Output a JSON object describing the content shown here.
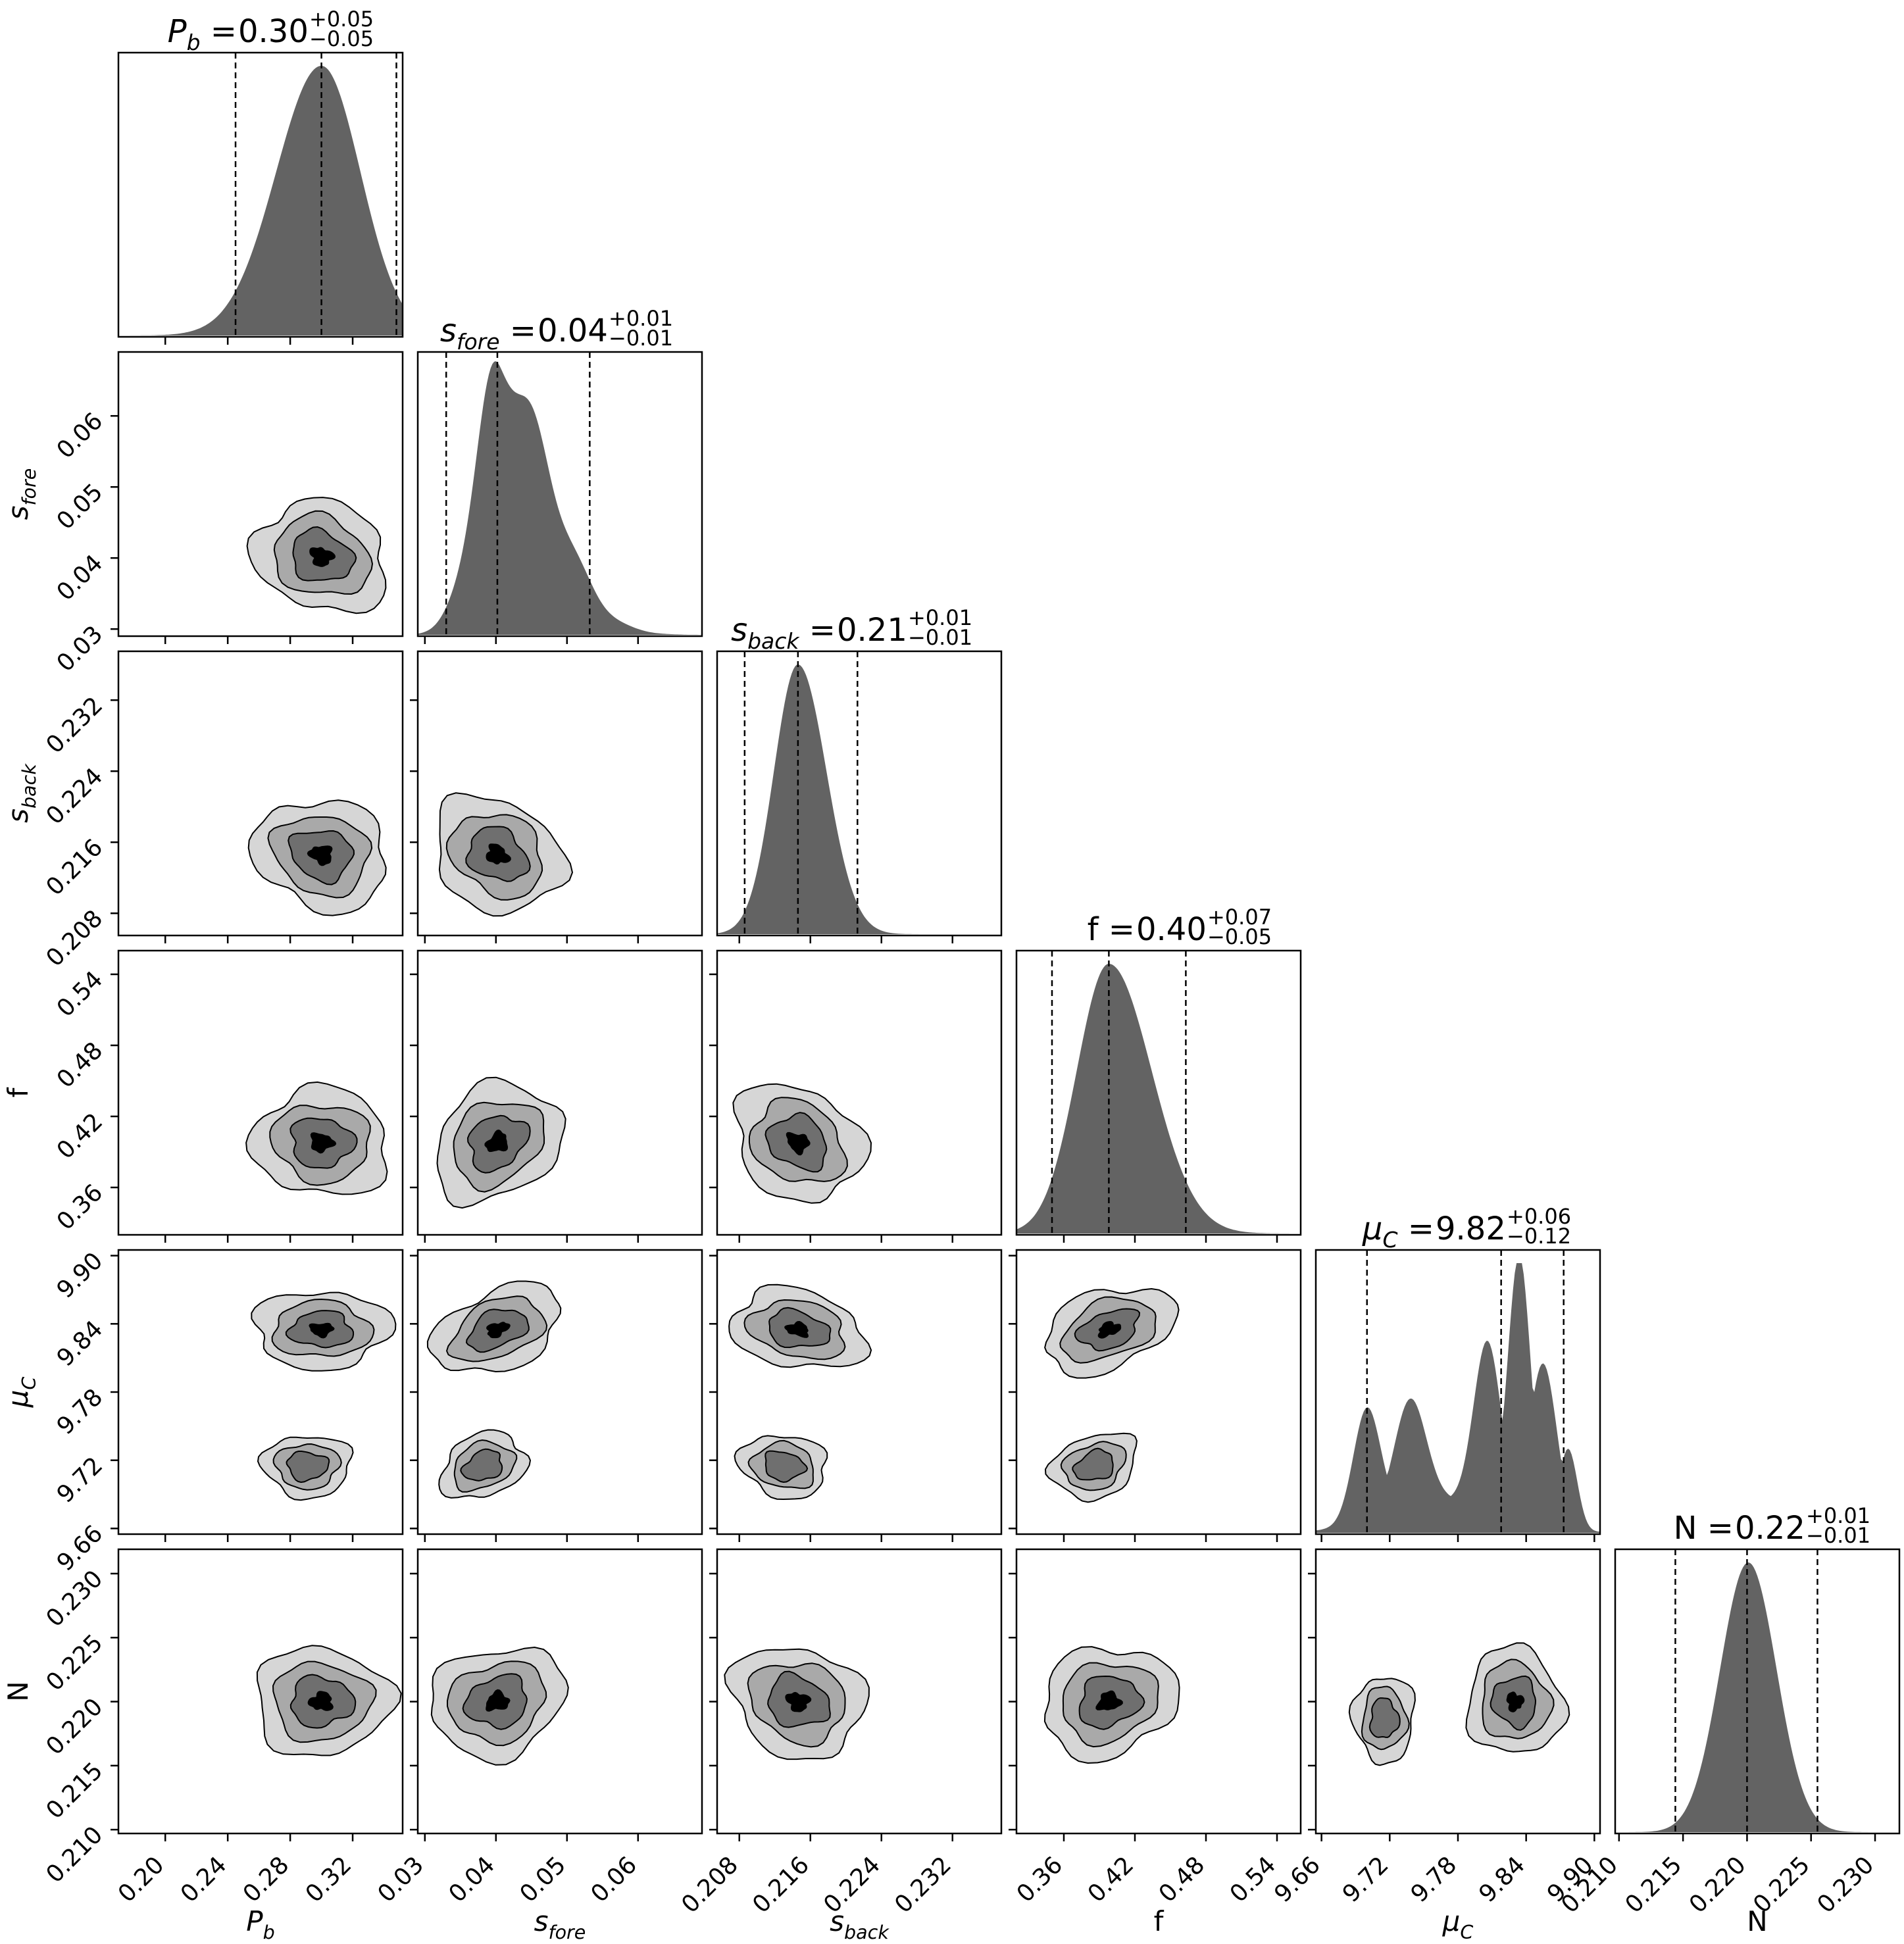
{
  "chart_data": {
    "type": "corner",
    "parameters": [
      {
        "key": "Pb",
        "label": "P",
        "sub": "b",
        "italic": true,
        "range": [
          0.17,
          0.352
        ],
        "ticks": [
          "0.20",
          "0.24",
          "0.28",
          "0.32"
        ],
        "title": {
          "median": "0.30",
          "plus": "+0.05",
          "minus": "−0.05"
        },
        "quantiles": [
          0.245,
          0.3,
          0.348
        ],
        "hist_peak": 0.3,
        "hist_sigma_left": 0.029,
        "hist_sigma_right": 0.025
      },
      {
        "key": "sfore",
        "label": "s",
        "sub": "fore",
        "italic": true,
        "range": [
          0.029,
          0.069
        ],
        "ticks": [
          "0.03",
          "0.04",
          "0.05",
          "0.06"
        ],
        "title": {
          "median": "0.04",
          "plus": "+0.01",
          "minus": "−0.01"
        },
        "quantiles": [
          0.033,
          0.0402,
          0.0532
        ],
        "hist_peak": 0.0405,
        "hist_sigma_left": 0.0035,
        "hist_sigma_right": 0.007
      },
      {
        "key": "sback",
        "label": "s",
        "sub": "back",
        "italic": true,
        "range": [
          0.2055,
          0.2375
        ],
        "ticks": [
          "0.208",
          "0.216",
          "0.224",
          "0.232"
        ],
        "title": {
          "median": "0.21",
          "plus": "+0.01",
          "minus": "−0.01"
        },
        "quantiles": [
          0.2086,
          0.2146,
          0.2213
        ],
        "hist_peak": 0.2146,
        "hist_sigma_left": 0.0027,
        "hist_sigma_right": 0.0032
      },
      {
        "key": "f",
        "label": "f",
        "sub": "",
        "italic": false,
        "range": [
          0.32,
          0.56
        ],
        "ticks": [
          "0.36",
          "0.42",
          "0.48",
          "0.54"
        ],
        "title": {
          "median": "0.40",
          "plus": "+0.07",
          "minus": "−0.05"
        },
        "quantiles": [
          0.35,
          0.398,
          0.463
        ],
        "hist_peak": 0.398,
        "hist_sigma_left": 0.027,
        "hist_sigma_right": 0.036
      },
      {
        "key": "muC",
        "label": "μ",
        "sub": "C",
        "italic": true,
        "range": [
          9.655,
          9.905
        ],
        "ticks": [
          "9.66",
          "9.72",
          "9.78",
          "9.84",
          "9.90"
        ],
        "title": {
          "median": "9.82",
          "plus": "+0.06",
          "minus": "−0.12"
        },
        "quantiles": [
          9.7,
          9.818,
          9.873
        ],
        "hist_peak": 9.835,
        "hist_sigma_left": 0.02,
        "hist_sigma_right": 0.02
      },
      {
        "key": "N",
        "label": "N",
        "sub": "",
        "italic": false,
        "range": [
          0.2097,
          0.2319
        ],
        "ticks": [
          "0.210",
          "0.215",
          "0.220",
          "0.225",
          "0.230"
        ],
        "title": {
          "median": "0.22",
          "plus": "+0.01",
          "minus": "−0.01"
        },
        "quantiles": [
          0.2144,
          0.22,
          0.2255
        ],
        "hist_peak": 0.2201,
        "hist_sigma_left": 0.0022,
        "hist_sigma_right": 0.0022
      }
    ],
    "contour_levels": 4,
    "colors": {
      "fill": [
        "#d6d6d6",
        "#a9a9a9",
        "#6f6f6f",
        "#000000"
      ],
      "hist": "#636363",
      "line": "#000000",
      "frame": "#000000"
    }
  }
}
